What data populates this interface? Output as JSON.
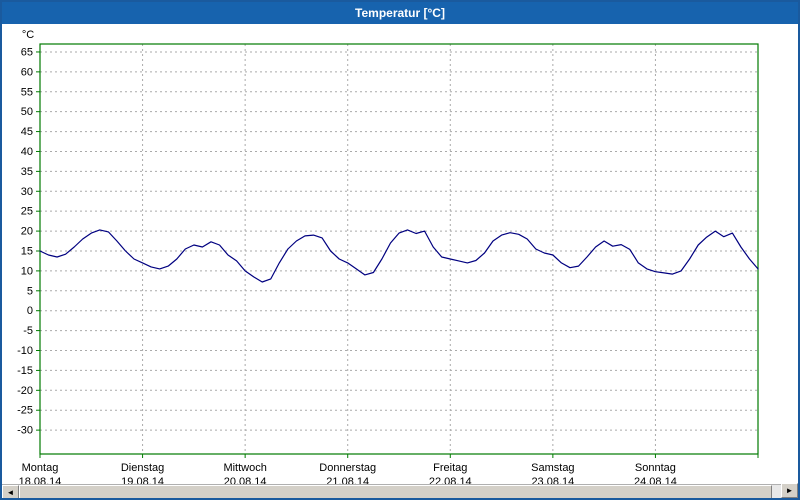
{
  "window": {
    "title": "Temperatur [°C]"
  },
  "icons": {
    "scroll_left": "◄",
    "scroll_right": "►"
  },
  "chart_data": {
    "type": "line",
    "title": "Temperatur [°C]",
    "ylabel": "°C",
    "ylim": [
      -36,
      67
    ],
    "y_ticks": [
      65,
      60,
      55,
      50,
      45,
      40,
      35,
      30,
      25,
      20,
      15,
      10,
      5,
      0,
      -5,
      -10,
      -15,
      -20,
      -25,
      -30
    ],
    "grid": "dashed",
    "legend_position": "none",
    "line_color": "#000080",
    "frame_color": "#007a00",
    "x_days": [
      {
        "name": "Montag",
        "date": "18.08.14"
      },
      {
        "name": "Dienstag",
        "date": "19.08.14"
      },
      {
        "name": "Mittwoch",
        "date": "20.08.14"
      },
      {
        "name": "Donnerstag",
        "date": "21.08.14"
      },
      {
        "name": "Freitag",
        "date": "22.08.14"
      },
      {
        "name": "Samstag",
        "date": "23.08.14"
      },
      {
        "name": "Sonntag",
        "date": "24.08.14"
      }
    ],
    "hours_per_step": 2,
    "values": [
      15.0,
      14.0,
      13.5,
      14.2,
      16.0,
      18.0,
      19.5,
      20.3,
      19.8,
      17.5,
      15.0,
      13.0,
      12.0,
      11.0,
      10.5,
      11.2,
      13.0,
      15.5,
      16.5,
      16.0,
      17.3,
      16.5,
      14.0,
      12.5,
      10.0,
      8.5,
      7.2,
      8.0,
      12.0,
      15.5,
      17.5,
      18.8,
      19.0,
      18.3,
      15.0,
      13.0,
      12.0,
      10.5,
      9.0,
      9.6,
      13.0,
      17.0,
      19.5,
      20.3,
      19.4,
      20.0,
      16.0,
      13.5,
      13.0,
      12.5,
      12.0,
      12.6,
      14.5,
      17.5,
      19.0,
      19.6,
      19.2,
      18.0,
      15.5,
      14.5,
      14.0,
      12.0,
      10.8,
      11.2,
      13.5,
      16.0,
      17.5,
      16.2,
      16.6,
      15.4,
      12.0,
      10.5,
      9.8,
      9.5,
      9.2,
      10.0,
      13.0,
      16.5,
      18.5,
      20.0,
      18.6,
      19.5,
      16.0,
      13.0,
      10.5
    ]
  }
}
